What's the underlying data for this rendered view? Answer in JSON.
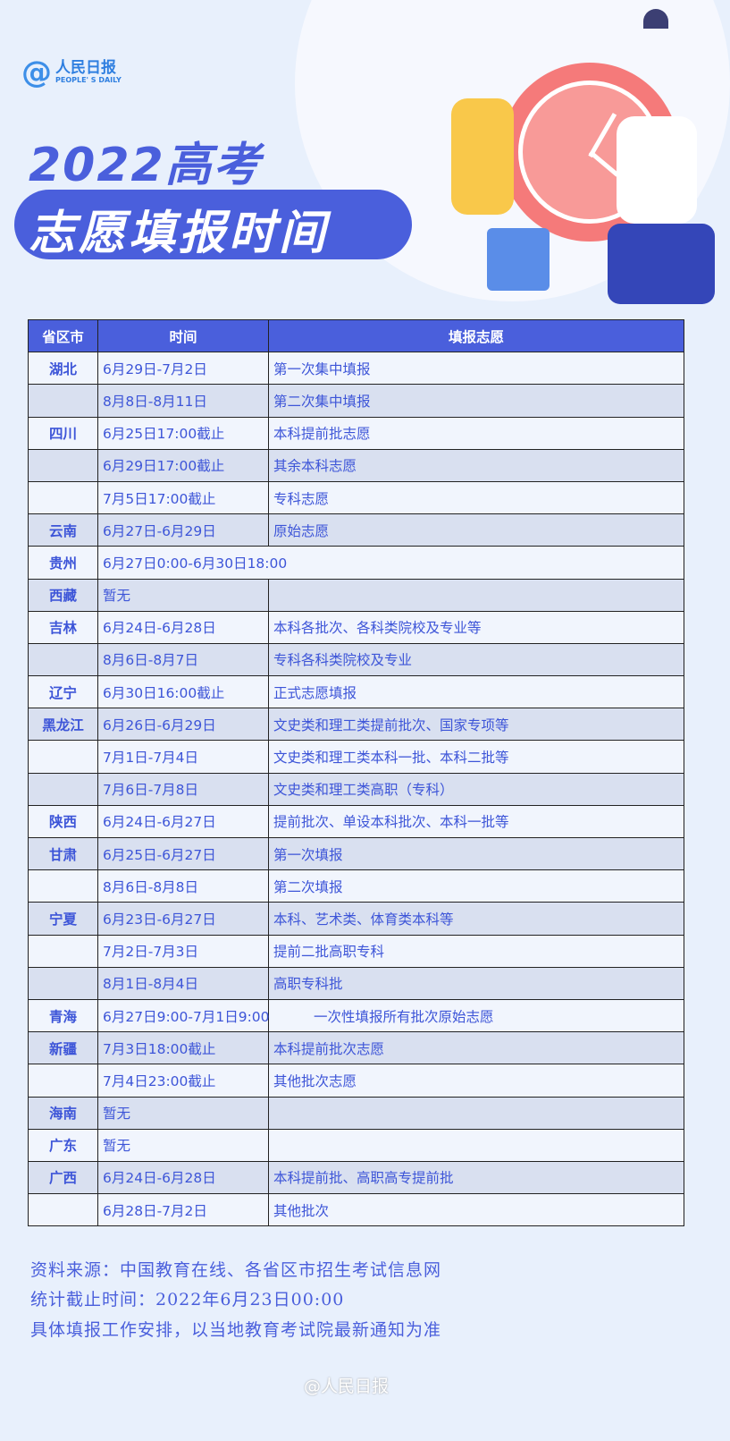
{
  "brand": {
    "logo_cn": "人民日报",
    "logo_en": "PEOPLE' S DAILY"
  },
  "title": {
    "line1": "2022高考",
    "line2": "志愿填报时间"
  },
  "table": {
    "headers": [
      "省区市",
      "时间",
      "填报志愿"
    ],
    "rows": [
      {
        "province": "湖北",
        "time": "6月29日-7月2日",
        "item": "第一次集中填报"
      },
      {
        "province": "",
        "time": "8月8日-8月11日",
        "item": "第二次集中填报"
      },
      {
        "province": "四川",
        "time": "6月25日17:00截止",
        "item": "本科提前批志愿"
      },
      {
        "province": "",
        "time": "6月29日17:00截止",
        "item": "其余本科志愿"
      },
      {
        "province": "",
        "time": "7月5日17:00截止",
        "item": "专科志愿"
      },
      {
        "province": "云南",
        "time": "6月27日-6月29日",
        "item": "原始志愿"
      },
      {
        "province": "贵州",
        "time": "6月27日0:00-6月30日18:00",
        "item": ""
      },
      {
        "province": "西藏",
        "time": "暂无",
        "item": ""
      },
      {
        "province": "吉林",
        "time": "6月24日-6月28日",
        "item": "本科各批次、各科类院校及专业等"
      },
      {
        "province": "",
        "time": "8月6日-8月7日",
        "item": "专科各科类院校及专业"
      },
      {
        "province": "辽宁",
        "time": "6月30日16:00截止",
        "item": "正式志愿填报"
      },
      {
        "province": "黑龙江",
        "time": "6月26日-6月29日",
        "item": "文史类和理工类提前批次、国家专项等"
      },
      {
        "province": "",
        "time": "7月1日-7月4日",
        "item": "文史类和理工类本科一批、本科二批等"
      },
      {
        "province": "",
        "time": "7月6日-7月8日",
        "item": "文史类和理工类高职（专科）"
      },
      {
        "province": "陕西",
        "time": "6月24日-6月27日",
        "item": "提前批次、单设本科批次、本科一批等"
      },
      {
        "province": "甘肃",
        "time": "6月25日-6月27日",
        "item": "第一次填报"
      },
      {
        "province": "",
        "time": "8月6日-8月8日",
        "item": "第二次填报"
      },
      {
        "province": "宁夏",
        "time": "6月23日-6月27日",
        "item": "本科、艺术类、体育类本科等"
      },
      {
        "province": "",
        "time": "7月2日-7月3日",
        "item": "提前二批高职专科"
      },
      {
        "province": "",
        "time": "8月1日-8月4日",
        "item": "高职专科批"
      },
      {
        "province": "青海",
        "time": "6月27日9:00-7月1日9:00",
        "item": "一次性填报所有批次原始志愿"
      },
      {
        "province": "新疆",
        "time": "7月3日18:00截止",
        "item": "本科提前批次志愿"
      },
      {
        "province": "",
        "time": "7月4日23:00截止",
        "item": "其他批次志愿"
      },
      {
        "province": "海南",
        "time": "暂无",
        "item": ""
      },
      {
        "province": "广东",
        "time": "暂无",
        "item": ""
      },
      {
        "province": "广西",
        "time": "6月24日-6月28日",
        "item": "本科提前批、高职高专提前批"
      },
      {
        "province": "",
        "time": "6月28日-7月2日",
        "item": "其他批次"
      }
    ]
  },
  "notes": [
    "资料来源：中国教育在线、各省区市招生考试信息网",
    "统计截止时间：2022年6月23日00:00",
    "具体填报工作安排，以当地教育考试院最新通知为准"
  ],
  "watermark": "@人民日报",
  "colors": {
    "accent": "#4a5fdc",
    "background": "#e8f0fc",
    "clock": "#f57a7a"
  }
}
